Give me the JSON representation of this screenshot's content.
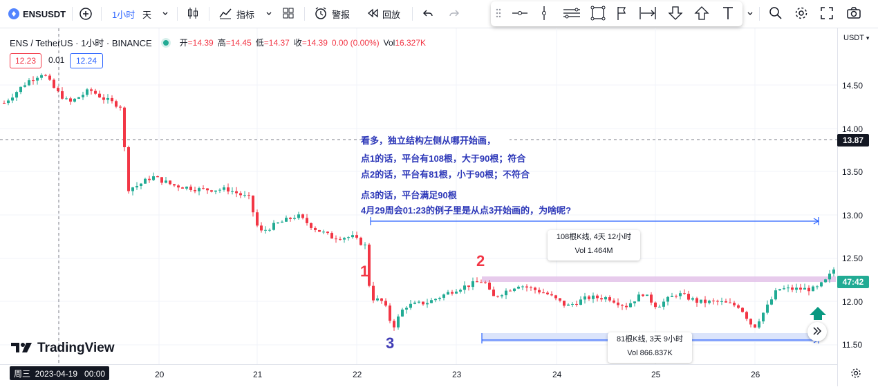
{
  "toolbar": {
    "symbol": "ENSUSDT",
    "interval": "1小时",
    "interval_alt": "天",
    "indicators_label": "指标",
    "alert_label": "警报",
    "replay_label": "回放"
  },
  "legend": {
    "title": "ENS / TetherUS · 1小时 · BINANCE",
    "open_label": "开",
    "open": "=14.39",
    "high_label": "高",
    "high": "=14.45",
    "low_label": "低",
    "low": "=14.37",
    "close_label": "收",
    "close": "=14.39",
    "change": "0.00 (0.00%)",
    "vol_label": "Vol",
    "vol": "16.327K"
  },
  "trade_box": {
    "sell": "12.23",
    "spread": "0.01",
    "buy": "12.24"
  },
  "axis": {
    "currency": "USDT",
    "prices": [
      "14.50",
      "14.00",
      "13.50",
      "13.00",
      "12.50",
      "12.00",
      "11.50"
    ],
    "days": [
      "20",
      "21",
      "22",
      "23",
      "24",
      "25",
      "26"
    ],
    "crosshair_date": "周三  2023-04-19   00:00",
    "crosshair_price": "13.87",
    "countdown": "47:42"
  },
  "notes": {
    "line1": "看多，独立结构左侧从哪开始画，",
    "line2": "点1的话，平台有108根，大于90根；符合",
    "line3": "点2的话，平台有81根，小于90根；不符合",
    "line4": "点3的话，平台满足90根",
    "line5": "4月29周会01:23的例子里是从点3开始画的，为啥呢?"
  },
  "points": {
    "p1": "1",
    "p2": "2",
    "p3": "3"
  },
  "range1": {
    "bars": "108根K线, 4天 12小时",
    "vol": "Vol 1.464M"
  },
  "range2": {
    "bars": "81根K线, 3天 9小时",
    "vol": "Vol 866.837K"
  },
  "brand": "TradingView",
  "colors": {
    "up": "#22ab94",
    "down": "#f23645",
    "accent": "#2962ff",
    "note": "#2c37b8"
  }
}
